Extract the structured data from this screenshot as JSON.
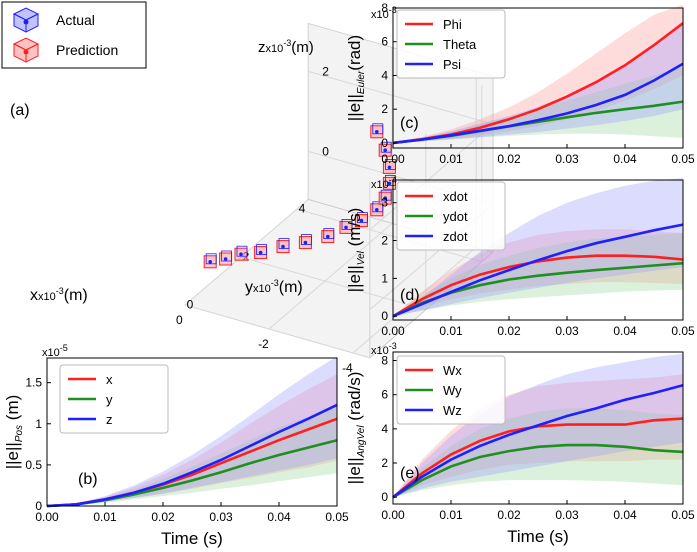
{
  "colors": {
    "red": "#ff1f1f",
    "green": "#1f8f1f",
    "blue": "#1f1fff",
    "red_band": "#ff9a9a",
    "green_band": "#9ad79a",
    "blue_band": "#9a9aff"
  },
  "chart_data": [
    {
      "id": "a",
      "type": "scatter",
      "panel_label": "(a)",
      "legend": [
        {
          "name": "Actual",
          "color": "blue",
          "icon": "cube-icon"
        },
        {
          "name": "Prediction",
          "color": "red",
          "icon": "cube-icon"
        }
      ],
      "axes": {
        "x": {
          "label": "x",
          "exp": "x10",
          "exp_sup": "-3",
          "unit": "(m)",
          "ticks": [
            "-4",
            "-2",
            "0"
          ]
        },
        "y": {
          "label": "y",
          "exp": "x10",
          "exp_sup": "-3",
          "unit": "(m)",
          "ticks": [
            "0",
            "2",
            "4"
          ]
        },
        "z": {
          "label": "z",
          "exp": "x10",
          "exp_sup": "-3",
          "unit": "(m)",
          "ticks": [
            "0",
            "2"
          ]
        }
      },
      "trajectory": [
        {
          "x": 0.2,
          "y": 1.2,
          "z": -0.9
        },
        {
          "x": -0.1,
          "y": 1.3,
          "z": -0.8
        },
        {
          "x": -0.4,
          "y": 1.4,
          "z": -0.65
        },
        {
          "x": -0.8,
          "y": 1.5,
          "z": -0.55
        },
        {
          "x": -1.2,
          "y": 1.7,
          "z": -0.4
        },
        {
          "x": -1.6,
          "y": 1.9,
          "z": -0.3
        },
        {
          "x": -2.0,
          "y": 2.1,
          "z": -0.15
        },
        {
          "x": -2.3,
          "y": 2.3,
          "z": 0.05
        },
        {
          "x": -2.6,
          "y": 2.4,
          "z": 0.25
        },
        {
          "x": -2.9,
          "y": 2.5,
          "z": 0.55
        },
        {
          "x": -3.1,
          "y": 2.5,
          "z": 0.9
        },
        {
          "x": -3.2,
          "y": 2.5,
          "z": 1.3
        },
        {
          "x": -3.2,
          "y": 2.5,
          "z": 1.7
        },
        {
          "x": -3.1,
          "y": 2.5,
          "z": 2.1
        },
        {
          "x": -2.9,
          "y": 2.5,
          "z": 2.5
        }
      ]
    },
    {
      "id": "b",
      "type": "line",
      "panel_label": "(b)",
      "ylabel": "||e||",
      "ylabel_sub": "Pos",
      "ylabel_unit": " (m)",
      "exponent": "x10",
      "exponent_sup": "-5",
      "xlabel": "Time (s)",
      "xlim": [
        0,
        0.05
      ],
      "ylim": [
        0,
        1.8
      ],
      "xticks": [
        0,
        0.01,
        0.02,
        0.03,
        0.04,
        0.05
      ],
      "xtick_labels": [
        "0.00",
        "0.01",
        "0.02",
        "0.03",
        "0.04",
        "0.05"
      ],
      "yticks": [
        0,
        0.5,
        1,
        1.5
      ],
      "ytick_labels": [
        "0",
        "0.5",
        "1",
        "1.5"
      ],
      "x": [
        0,
        0.005,
        0.01,
        0.015,
        0.02,
        0.025,
        0.03,
        0.035,
        0.04,
        0.045,
        0.05
      ],
      "series": [
        {
          "name": "x",
          "color": "red",
          "values": [
            0,
            0.02,
            0.08,
            0.16,
            0.26,
            0.38,
            0.52,
            0.66,
            0.8,
            0.93,
            1.06
          ],
          "upper": [
            0,
            0.03,
            0.11,
            0.23,
            0.38,
            0.56,
            0.77,
            1.0,
            1.22,
            1.42,
            1.6
          ],
          "lower": [
            0,
            0.01,
            0.05,
            0.1,
            0.15,
            0.21,
            0.28,
            0.34,
            0.41,
            0.47,
            0.55
          ]
        },
        {
          "name": "y",
          "color": "green",
          "values": [
            0,
            0.02,
            0.07,
            0.14,
            0.22,
            0.31,
            0.41,
            0.52,
            0.62,
            0.71,
            0.8
          ],
          "upper": [
            0,
            0.03,
            0.1,
            0.2,
            0.33,
            0.48,
            0.64,
            0.8,
            0.96,
            1.08,
            1.2
          ],
          "lower": [
            0,
            0.01,
            0.04,
            0.08,
            0.12,
            0.16,
            0.21,
            0.25,
            0.3,
            0.35,
            0.4
          ]
        },
        {
          "name": "z",
          "color": "blue",
          "values": [
            0,
            0.02,
            0.08,
            0.16,
            0.27,
            0.41,
            0.56,
            0.73,
            0.9,
            1.06,
            1.23
          ],
          "upper": [
            0,
            0.03,
            0.12,
            0.25,
            0.42,
            0.62,
            0.85,
            1.1,
            1.36,
            1.6,
            1.82
          ],
          "lower": [
            0,
            0.01,
            0.05,
            0.1,
            0.15,
            0.22,
            0.29,
            0.36,
            0.43,
            0.5,
            0.58
          ]
        }
      ]
    },
    {
      "id": "c",
      "type": "line",
      "panel_label": "(c)",
      "ylabel": "||e||",
      "ylabel_sub": "Euler",
      "ylabel_unit": "(rad)",
      "exponent": "x10",
      "exponent_sup": "-3",
      "xlabel": "",
      "xlim": [
        0,
        0.05
      ],
      "ylim": [
        -0.3,
        8
      ],
      "xticks": [
        0,
        0.01,
        0.02,
        0.03,
        0.04,
        0.05
      ],
      "xtick_labels": [
        "0.00",
        "0.01",
        "0.02",
        "0.03",
        "0.04",
        "0.05"
      ],
      "yticks": [
        0,
        2,
        4,
        6,
        8
      ],
      "ytick_labels": [
        "0",
        "2",
        "4",
        "6",
        "8"
      ],
      "x": [
        0,
        0.005,
        0.01,
        0.015,
        0.02,
        0.025,
        0.03,
        0.035,
        0.04,
        0.045,
        0.05
      ],
      "series": [
        {
          "name": "Phi",
          "color": "red",
          "values": [
            0,
            0.22,
            0.5,
            0.9,
            1.4,
            2.0,
            2.75,
            3.6,
            4.6,
            5.8,
            7.1
          ],
          "upper": [
            0,
            0.35,
            0.8,
            1.4,
            2.1,
            3.0,
            4.1,
            5.3,
            6.5,
            7.6,
            8.2
          ],
          "lower": [
            0,
            0.12,
            0.25,
            0.45,
            0.7,
            1.0,
            1.4,
            1.9,
            2.5,
            3.2,
            4.0
          ]
        },
        {
          "name": "Theta",
          "color": "green",
          "values": [
            0,
            0.2,
            0.42,
            0.7,
            0.98,
            1.25,
            1.52,
            1.78,
            2.0,
            2.2,
            2.45
          ],
          "upper": [
            0,
            0.3,
            0.65,
            1.1,
            1.55,
            2.0,
            2.5,
            3.0,
            3.5,
            4.0,
            4.5
          ],
          "lower": [
            0,
            0.1,
            0.2,
            0.32,
            0.42,
            0.5,
            0.55,
            0.55,
            0.5,
            0.4,
            0.3
          ]
        },
        {
          "name": "Psi",
          "color": "blue",
          "values": [
            0,
            0.2,
            0.45,
            0.72,
            1.0,
            1.35,
            1.75,
            2.25,
            2.85,
            3.7,
            4.7
          ],
          "upper": [
            0,
            0.3,
            0.7,
            1.15,
            1.6,
            2.15,
            2.8,
            3.6,
            4.6,
            5.8,
            7.0
          ],
          "lower": [
            0,
            0.1,
            0.22,
            0.35,
            0.5,
            0.65,
            0.85,
            1.05,
            1.3,
            1.6,
            2.0
          ]
        }
      ]
    },
    {
      "id": "d",
      "type": "line",
      "panel_label": "(d)",
      "ylabel": "||e||",
      "ylabel_sub": "Vel",
      "ylabel_unit": " (m/s)",
      "exponent": "x10",
      "exponent_sup": "-4",
      "xlabel": "",
      "xlim": [
        0,
        0.05
      ],
      "ylim": [
        -0.1,
        3.6
      ],
      "xticks": [
        0,
        0.01,
        0.02,
        0.03,
        0.04,
        0.05
      ],
      "xtick_labels": [
        "0.00",
        "0.01",
        "0.02",
        "0.03",
        "0.04",
        "0.05"
      ],
      "yticks": [
        0,
        1,
        2,
        3
      ],
      "ytick_labels": [
        "0",
        "1",
        "2",
        "3"
      ],
      "x": [
        0,
        0.005,
        0.01,
        0.015,
        0.02,
        0.025,
        0.03,
        0.035,
        0.04,
        0.045,
        0.05
      ],
      "series": [
        {
          "name": "xdot",
          "color": "red",
          "values": [
            0,
            0.45,
            0.82,
            1.1,
            1.3,
            1.45,
            1.55,
            1.6,
            1.6,
            1.57,
            1.5
          ],
          "upper": [
            0,
            0.65,
            1.2,
            1.65,
            1.95,
            2.15,
            2.25,
            2.3,
            2.3,
            2.25,
            2.2
          ],
          "lower": [
            0,
            0.25,
            0.45,
            0.6,
            0.7,
            0.8,
            0.85,
            0.9,
            0.9,
            0.88,
            0.85
          ]
        },
        {
          "name": "ydot",
          "color": "green",
          "values": [
            0,
            0.35,
            0.62,
            0.82,
            0.97,
            1.07,
            1.15,
            1.22,
            1.28,
            1.34,
            1.4
          ],
          "upper": [
            0,
            0.55,
            1.0,
            1.35,
            1.6,
            1.8,
            1.95,
            2.05,
            2.1,
            2.15,
            2.2
          ],
          "lower": [
            0,
            0.15,
            0.28,
            0.38,
            0.45,
            0.5,
            0.55,
            0.6,
            0.65,
            0.68,
            0.7
          ]
        },
        {
          "name": "zdot",
          "color": "blue",
          "values": [
            0,
            0.32,
            0.64,
            0.95,
            1.22,
            1.48,
            1.72,
            1.93,
            2.1,
            2.27,
            2.42
          ],
          "upper": [
            0,
            0.5,
            1.1,
            1.7,
            2.2,
            2.65,
            3.0,
            3.25,
            3.45,
            3.58,
            3.65
          ],
          "lower": [
            0,
            0.15,
            0.32,
            0.48,
            0.62,
            0.75,
            0.88,
            1.0,
            1.1,
            1.2,
            1.3
          ]
        }
      ]
    },
    {
      "id": "e",
      "type": "line",
      "panel_label": "(e)",
      "ylabel": "||e||",
      "ylabel_sub": "AngVel",
      "ylabel_unit": " (rad/s)",
      "exponent": "x10",
      "exponent_sup": "-3",
      "xlabel": "Time (s)",
      "xlim": [
        0,
        0.05
      ],
      "ylim": [
        -0.4,
        8.5
      ],
      "xticks": [
        0,
        0.01,
        0.02,
        0.03,
        0.04,
        0.05
      ],
      "xtick_labels": [
        "0.00",
        "0.01",
        "0.02",
        "0.03",
        "0.04",
        "0.05"
      ],
      "yticks": [
        0,
        2,
        4,
        6,
        8
      ],
      "ytick_labels": [
        "0",
        "2",
        "4",
        "6",
        "8"
      ],
      "x": [
        0,
        0.005,
        0.01,
        0.015,
        0.02,
        0.025,
        0.03,
        0.035,
        0.04,
        0.045,
        0.05
      ],
      "series": [
        {
          "name": "Wx",
          "color": "red",
          "values": [
            0,
            1.4,
            2.5,
            3.3,
            3.85,
            4.15,
            4.25,
            4.25,
            4.25,
            4.5,
            4.6
          ],
          "upper": [
            0,
            2.2,
            3.9,
            5.2,
            6.0,
            6.5,
            6.7,
            6.8,
            6.9,
            7.0,
            7.2
          ],
          "lower": [
            0,
            0.7,
            1.2,
            1.6,
            1.9,
            2.0,
            2.1,
            2.1,
            2.1,
            2.2,
            2.2
          ]
        },
        {
          "name": "Wy",
          "color": "green",
          "values": [
            0,
            1.0,
            1.8,
            2.35,
            2.7,
            2.95,
            3.05,
            3.05,
            2.95,
            2.75,
            2.65
          ],
          "upper": [
            0,
            1.7,
            3.0,
            4.0,
            4.6,
            5.0,
            5.2,
            5.2,
            5.1,
            4.9,
            4.8
          ],
          "lower": [
            0,
            0.4,
            0.7,
            0.9,
            1.0,
            1.0,
            1.0,
            0.95,
            0.9,
            0.8,
            0.7
          ]
        },
        {
          "name": "Wz",
          "color": "blue",
          "values": [
            0,
            1.2,
            2.2,
            3.0,
            3.65,
            4.2,
            4.75,
            5.2,
            5.7,
            6.1,
            6.55
          ],
          "upper": [
            0,
            2.0,
            3.6,
            4.9,
            5.9,
            6.6,
            7.2,
            7.6,
            7.9,
            8.2,
            8.4
          ],
          "lower": [
            0,
            0.5,
            0.9,
            1.2,
            1.5,
            1.8,
            2.1,
            2.4,
            2.7,
            2.95,
            3.2
          ]
        }
      ]
    }
  ]
}
